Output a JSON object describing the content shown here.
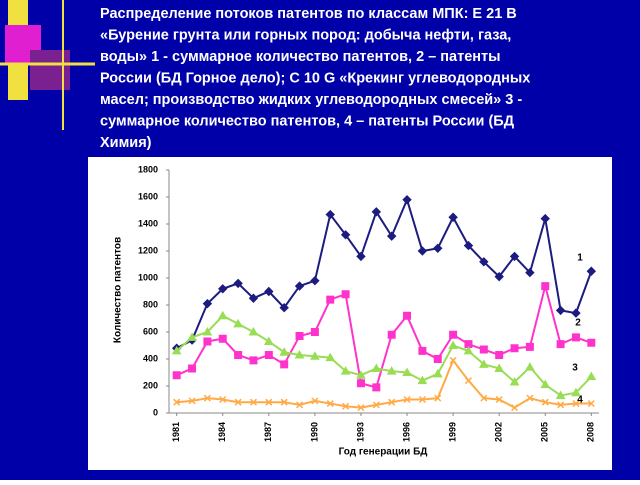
{
  "chart_data": {
    "type": "line",
    "title_lines": [
      "Распределение  потоков патентов по классам МПК: Е 21 В",
      "«Бурение грунта или горных пород: добыча нефти, газа,",
      "воды» 1 - суммарное количество патентов, 2 – патенты",
      "России (БД Горное дело); С 10 G «Крекинг углеводородных",
      "масел; производство жидких углеводородных смесей» 3 -",
      "суммарное количество патентов, 4 – патенты России (БД",
      "Химия)"
    ],
    "x_label": "Год генерации БД",
    "y_label": "Количество патентов",
    "x": [
      1981,
      1982,
      1983,
      1984,
      1985,
      1986,
      1987,
      1988,
      1989,
      1990,
      1991,
      1992,
      1993,
      1994,
      1995,
      1996,
      1997,
      1998,
      1999,
      2000,
      2001,
      2002,
      2003,
      2004,
      2005,
      2006,
      2007,
      2008
    ],
    "xlim": [
      1980.5,
      2008.5
    ],
    "xticks": [
      1981,
      1984,
      1987,
      1990,
      1993,
      1996,
      1999,
      2002,
      2005,
      2008
    ],
    "ylim": [
      0,
      1800
    ],
    "yticks": [
      0,
      200,
      400,
      600,
      800,
      1000,
      1200,
      1400,
      1600,
      1800
    ],
    "series": [
      {
        "name": "1",
        "color": "#1c1c80",
        "marker": "diamond",
        "values": [
          480,
          540,
          810,
          920,
          960,
          850,
          900,
          780,
          940,
          980,
          1470,
          1320,
          1160,
          1490,
          1310,
          1580,
          1200,
          1220,
          1450,
          1240,
          1120,
          1010,
          1160,
          1040,
          1440,
          760,
          740,
          1050
        ]
      },
      {
        "name": "2",
        "color": "#ff33cc",
        "marker": "square",
        "values": [
          280,
          330,
          530,
          550,
          430,
          390,
          430,
          360,
          570,
          600,
          840,
          880,
          220,
          190,
          580,
          720,
          460,
          400,
          580,
          510,
          470,
          430,
          480,
          490,
          940,
          510,
          560,
          520
        ]
      },
      {
        "name": "3",
        "color": "#99dd55",
        "marker": "triangle",
        "values": [
          460,
          560,
          600,
          720,
          660,
          600,
          530,
          450,
          430,
          420,
          410,
          310,
          280,
          330,
          310,
          300,
          240,
          290,
          500,
          460,
          360,
          330,
          230,
          340,
          210,
          130,
          150,
          270
        ]
      },
      {
        "name": "4",
        "color": "#ffaa44",
        "marker": "cross",
        "values": [
          80,
          90,
          110,
          100,
          80,
          80,
          80,
          80,
          60,
          90,
          70,
          50,
          40,
          60,
          80,
          100,
          100,
          110,
          390,
          240,
          110,
          100,
          40,
          110,
          80,
          60,
          70,
          70
        ]
      }
    ]
  }
}
